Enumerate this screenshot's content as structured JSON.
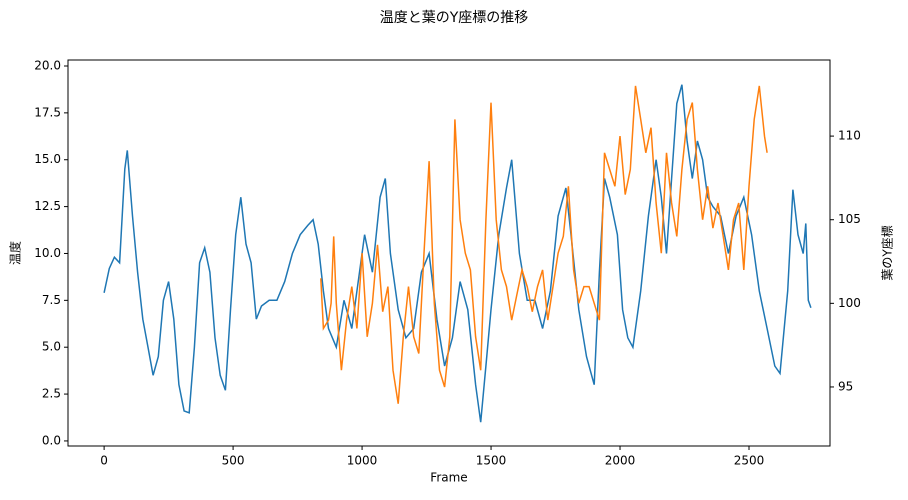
{
  "chart_data": {
    "type": "line",
    "title": "温度と葉のY座標の推移",
    "xlabel": "Frame",
    "ylabel": "温度",
    "y2label": "葉のY座標",
    "xlim": [
      -140,
      2814
    ],
    "xticks": [
      0,
      500,
      1000,
      1500,
      2000,
      2500
    ],
    "ylim": [
      -0.27,
      20.32
    ],
    "yticks": [
      {
        "value": 0,
        "label": "0.0"
      },
      {
        "value": 2.5,
        "label": "2.5"
      },
      {
        "value": 5,
        "label": "5.0"
      },
      {
        "value": 7.5,
        "label": "7.5"
      },
      {
        "value": 10,
        "label": "10.0"
      },
      {
        "value": 12.5,
        "label": "12.5"
      },
      {
        "value": 15,
        "label": "15.0"
      },
      {
        "value": 17.5,
        "label": "17.5"
      },
      {
        "value": 20,
        "label": "20.0"
      }
    ],
    "y2lim": [
      91.47,
      114.55
    ],
    "y2ticks": [
      95,
      100,
      105,
      110
    ],
    "series": [
      {
        "color": "#1f77b4",
        "axis": "y",
        "x": [
          0,
          20,
          40,
          60,
          80,
          90,
          110,
          130,
          150,
          170,
          190,
          210,
          230,
          250,
          270,
          290,
          310,
          330,
          350,
          370,
          390,
          410,
          430,
          450,
          470,
          490,
          510,
          530,
          550,
          570,
          590,
          610,
          640,
          670,
          700,
          730,
          760,
          790,
          810,
          830,
          850,
          870,
          900,
          930,
          960,
          990,
          1010,
          1040,
          1070,
          1090,
          1110,
          1140,
          1170,
          1200,
          1230,
          1260,
          1290,
          1320,
          1350,
          1380,
          1410,
          1440,
          1460,
          1480,
          1500,
          1530,
          1560,
          1580,
          1610,
          1640,
          1670,
          1700,
          1730,
          1760,
          1790,
          1810,
          1840,
          1870,
          1900,
          1920,
          1940,
          1960,
          1990,
          2010,
          2030,
          2050,
          2080,
          2110,
          2140,
          2160,
          2180,
          2200,
          2220,
          2240,
          2260,
          2280,
          2300,
          2320,
          2340,
          2360,
          2390,
          2420,
          2450,
          2480,
          2510,
          2540,
          2570,
          2600,
          2620,
          2650,
          2670,
          2690,
          2710,
          2720,
          2730,
          2740
        ],
        "values": [
          7.9,
          9.2,
          9.8,
          9.5,
          14.5,
          15.5,
          12,
          9,
          6.5,
          5,
          3.5,
          4.5,
          7.5,
          8.5,
          6.5,
          3,
          1.6,
          1.5,
          5,
          9.5,
          10.3,
          9,
          5.5,
          3.5,
          2.7,
          7,
          11,
          13,
          10.5,
          9.5,
          6.5,
          7.2,
          7.5,
          7.5,
          8.5,
          10,
          11,
          11.5,
          11.8,
          10.5,
          8,
          6,
          5,
          7.5,
          6,
          9,
          11,
          9,
          13,
          14,
          10,
          7,
          5.5,
          6,
          9,
          10,
          6.5,
          4,
          5.5,
          8.5,
          7,
          3,
          1,
          4,
          7,
          11,
          13.5,
          15,
          10,
          7.5,
          7.5,
          6,
          8,
          12,
          13.5,
          11,
          7,
          4.5,
          3,
          9,
          14,
          13,
          11,
          7,
          5.5,
          5,
          8,
          12,
          15,
          13,
          10,
          14,
          18,
          19,
          16,
          14,
          16,
          15,
          13,
          12.5,
          12,
          10,
          12,
          13,
          11,
          8,
          6,
          4,
          3.6,
          8,
          13.4,
          11,
          10,
          11.6,
          7.5,
          7.1
        ]
      },
      {
        "color": "#ff7f0e",
        "axis": "y2",
        "x": [
          840,
          850,
          870,
          880,
          890,
          900,
          920,
          940,
          960,
          980,
          1000,
          1020,
          1040,
          1060,
          1080,
          1100,
          1120,
          1140,
          1160,
          1180,
          1200,
          1220,
          1240,
          1260,
          1280,
          1300,
          1320,
          1340,
          1360,
          1380,
          1400,
          1420,
          1440,
          1460,
          1480,
          1500,
          1520,
          1540,
          1560,
          1580,
          1600,
          1620,
          1640,
          1660,
          1680,
          1700,
          1720,
          1740,
          1760,
          1780,
          1800,
          1820,
          1840,
          1860,
          1880,
          1900,
          1920,
          1940,
          1960,
          1980,
          2000,
          2020,
          2040,
          2060,
          2080,
          2100,
          2120,
          2140,
          2160,
          2180,
          2200,
          2220,
          2240,
          2260,
          2280,
          2300,
          2320,
          2340,
          2360,
          2380,
          2400,
          2420,
          2440,
          2460,
          2480,
          2500,
          2520,
          2540,
          2560,
          2570
        ],
        "values": [
          101.5,
          98.5,
          99,
          100,
          104,
          100,
          96,
          99,
          101,
          98.5,
          103,
          98,
          100,
          103.5,
          99.5,
          101,
          96,
          94,
          98,
          101,
          98,
          97,
          103,
          108.5,
          100,
          96,
          95,
          98,
          111,
          105,
          103,
          102,
          98,
          96,
          105,
          112,
          105,
          102,
          101,
          99,
          100.5,
          102,
          101,
          99.5,
          101,
          102,
          99,
          101,
          103,
          104,
          107,
          102,
          100,
          101,
          101,
          100,
          99,
          109,
          108,
          107,
          110,
          106.5,
          108,
          113,
          111,
          109,
          110.5,
          106,
          103,
          109,
          106,
          104,
          108,
          111,
          112,
          108,
          105,
          107,
          104.5,
          106,
          104,
          102,
          105,
          106,
          102,
          107,
          111,
          113,
          110,
          109
        ]
      }
    ]
  }
}
